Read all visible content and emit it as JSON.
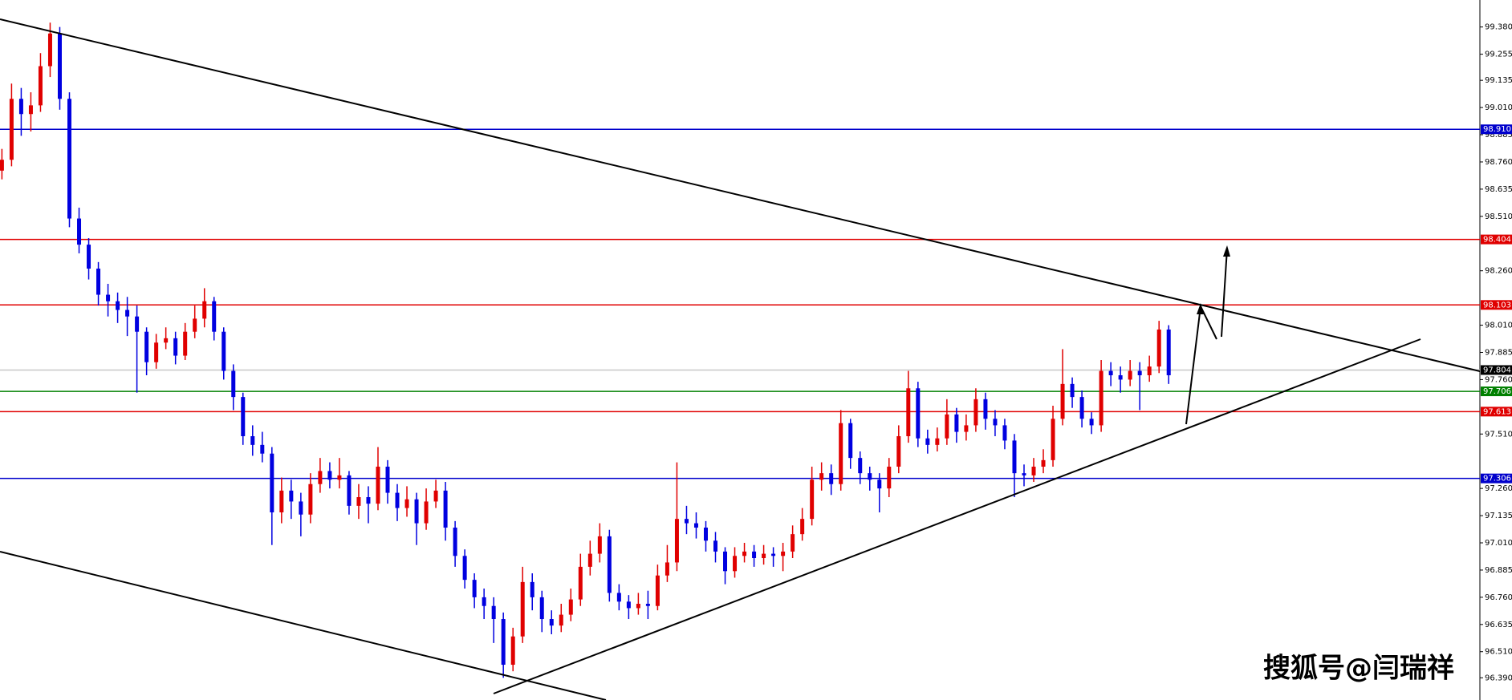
{
  "chart_data": {
    "type": "candlestick",
    "up_color": "#e00000",
    "down_color": "#0000e0",
    "open": [
      98.72,
      98.77,
      99.05,
      98.98,
      99.02,
      99.2,
      99.35,
      99.05,
      98.5,
      98.38,
      98.27,
      98.15,
      98.12,
      98.08,
      98.05,
      97.98,
      97.84,
      97.93,
      97.95,
      97.87,
      97.98,
      98.04,
      98.12,
      97.98,
      97.8,
      97.68,
      97.5,
      97.46,
      97.42,
      97.15,
      97.25,
      97.2,
      97.14,
      97.28,
      97.34,
      97.3,
      97.32,
      97.18,
      97.22,
      97.19,
      97.36,
      97.24,
      97.17,
      97.21,
      97.1,
      97.2,
      97.25,
      97.08,
      96.95,
      96.84,
      96.76,
      96.72,
      96.66,
      96.45,
      96.58,
      96.83,
      96.76,
      96.66,
      96.63,
      96.68,
      96.75,
      96.9,
      96.96,
      97.04,
      96.78,
      96.74,
      96.71,
      96.73,
      96.72,
      96.86,
      96.92,
      97.12,
      97.1,
      97.08,
      97.02,
      96.97,
      96.88,
      96.95,
      96.97,
      96.94,
      96.96,
      96.95,
      96.97,
      97.05,
      97.12,
      97.3,
      97.33,
      97.28,
      97.56,
      97.4,
      97.33,
      97.3,
      97.26,
      97.36,
      97.5,
      97.72,
      97.49,
      97.46,
      97.49,
      97.6,
      97.52,
      97.55,
      97.67,
      97.58,
      97.55,
      97.48,
      97.33,
      97.32,
      97.36,
      97.39,
      97.58,
      97.74,
      97.68,
      97.58,
      97.55,
      97.8,
      97.78,
      97.76,
      97.8,
      97.78,
      97.82,
      97.99
    ],
    "high": [
      98.82,
      99.12,
      99.1,
      99.08,
      99.26,
      99.4,
      99.38,
      99.08,
      98.55,
      98.41,
      98.3,
      98.2,
      98.16,
      98.14,
      98.1,
      98.0,
      97.97,
      98.0,
      97.98,
      98.02,
      98.1,
      98.18,
      98.14,
      98.0,
      97.83,
      97.7,
      97.55,
      97.52,
      97.45,
      97.31,
      97.3,
      97.24,
      97.33,
      97.4,
      97.38,
      97.4,
      97.34,
      97.28,
      97.27,
      97.45,
      97.39,
      97.28,
      97.27,
      97.24,
      97.26,
      97.3,
      97.29,
      97.11,
      96.98,
      96.87,
      96.8,
      96.76,
      96.69,
      96.62,
      96.9,
      96.87,
      96.79,
      96.7,
      96.73,
      96.8,
      96.96,
      97.02,
      97.1,
      97.07,
      96.82,
      96.77,
      96.78,
      96.79,
      96.91,
      97.0,
      97.38,
      97.18,
      97.15,
      97.11,
      97.06,
      96.99,
      96.99,
      97.01,
      97.0,
      97.0,
      96.99,
      97.01,
      97.09,
      97.17,
      97.36,
      97.38,
      97.37,
      97.62,
      97.58,
      97.43,
      97.36,
      97.33,
      97.4,
      97.55,
      97.8,
      97.75,
      97.53,
      97.54,
      97.67,
      97.63,
      97.6,
      97.72,
      97.7,
      97.62,
      97.58,
      97.51,
      97.37,
      97.4,
      97.44,
      97.64,
      97.9,
      97.77,
      97.71,
      97.61,
      97.85,
      97.84,
      97.82,
      97.85,
      97.84,
      97.87,
      98.03,
      98.01
    ],
    "low": [
      98.68,
      98.74,
      98.88,
      98.9,
      98.99,
      99.15,
      99.0,
      98.46,
      98.34,
      98.22,
      98.1,
      98.05,
      98.02,
      97.96,
      97.7,
      97.78,
      97.81,
      97.9,
      97.83,
      97.85,
      97.95,
      98.0,
      97.94,
      97.76,
      97.62,
      97.46,
      97.41,
      97.38,
      97.0,
      97.1,
      97.12,
      97.04,
      97.1,
      97.24,
      97.26,
      97.26,
      97.14,
      97.12,
      97.1,
      97.16,
      97.19,
      97.11,
      97.13,
      97.0,
      97.07,
      97.17,
      97.02,
      96.9,
      96.8,
      96.71,
      96.66,
      96.55,
      96.39,
      96.42,
      96.55,
      96.7,
      96.6,
      96.59,
      96.6,
      96.65,
      96.72,
      96.86,
      96.92,
      96.74,
      96.7,
      96.66,
      96.68,
      96.66,
      96.7,
      96.83,
      96.88,
      97.05,
      97.03,
      96.97,
      96.92,
      96.82,
      96.85,
      96.92,
      96.9,
      96.91,
      96.9,
      96.88,
      96.94,
      97.02,
      97.09,
      97.25,
      97.23,
      97.25,
      97.35,
      97.28,
      97.25,
      97.15,
      97.22,
      97.33,
      97.47,
      97.45,
      97.42,
      97.43,
      97.46,
      97.47,
      97.48,
      97.52,
      97.53,
      97.5,
      97.44,
      97.22,
      97.27,
      97.29,
      97.33,
      97.36,
      97.55,
      97.63,
      97.54,
      97.51,
      97.52,
      97.73,
      97.7,
      97.73,
      97.62,
      97.75,
      97.79,
      97.74
    ],
    "close": [
      98.77,
      99.05,
      98.98,
      99.02,
      99.2,
      99.35,
      99.05,
      98.5,
      98.38,
      98.27,
      98.15,
      98.12,
      98.08,
      98.05,
      97.98,
      97.84,
      97.93,
      97.95,
      97.87,
      97.98,
      98.04,
      98.12,
      97.98,
      97.8,
      97.68,
      97.5,
      97.46,
      97.42,
      97.15,
      97.25,
      97.2,
      97.14,
      97.28,
      97.34,
      97.3,
      97.32,
      97.18,
      97.22,
      97.19,
      97.36,
      97.24,
      97.17,
      97.21,
      97.1,
      97.2,
      97.25,
      97.08,
      96.95,
      96.84,
      96.76,
      96.72,
      96.66,
      96.45,
      96.58,
      96.83,
      96.76,
      96.66,
      96.63,
      96.68,
      96.75,
      96.9,
      96.96,
      97.04,
      96.78,
      96.74,
      96.71,
      96.73,
      96.72,
      96.86,
      96.92,
      97.12,
      97.1,
      97.08,
      97.02,
      96.97,
      96.88,
      96.95,
      96.97,
      96.94,
      96.96,
      96.95,
      96.97,
      97.05,
      97.12,
      97.3,
      97.33,
      97.28,
      97.56,
      97.4,
      97.33,
      97.3,
      97.26,
      97.36,
      97.5,
      97.72,
      97.49,
      97.46,
      97.49,
      97.6,
      97.52,
      97.55,
      97.67,
      97.58,
      97.55,
      97.48,
      97.33,
      97.32,
      97.36,
      97.39,
      97.58,
      97.74,
      97.68,
      97.58,
      97.55,
      97.8,
      97.78,
      97.76,
      97.8,
      97.78,
      97.82,
      97.99,
      97.78
    ],
    "ylim": [
      96.288,
      99.504
    ],
    "yticks": [
      {
        "value": 99.38,
        "label": "99.380"
      },
      99.255,
      99.135,
      {
        "value": 99.01,
        "label": "99.010"
      },
      98.885,
      {
        "value": 98.76,
        "label": "98.760"
      },
      98.635,
      {
        "value": 98.51,
        "label": "98.510"
      },
      {
        "value": 98.26,
        "label": "98.260"
      },
      {
        "value": 98.01,
        "label": "98.010"
      },
      97.885,
      {
        "value": 97.76,
        "label": "97.760"
      },
      {
        "value": 97.51,
        "label": "97.510"
      },
      {
        "value": 97.26,
        "label": "97.260"
      },
      97.135,
      {
        "value": 97.01,
        "label": "97.010"
      },
      96.885,
      {
        "value": 96.76,
        "label": "96.760"
      },
      96.635,
      {
        "value": 96.51,
        "label": "96.510"
      },
      {
        "value": 96.39,
        "label": "96.390"
      }
    ],
    "levels": [
      {
        "value": 98.91,
        "label": "98.910",
        "color": "#0000cc"
      },
      {
        "value": 98.404,
        "label": "98.404",
        "color": "#e00000"
      },
      {
        "value": 98.103,
        "label": "98.103",
        "color": "#e00000"
      },
      {
        "value": 97.804,
        "label": "97.804",
        "color": "#c8c8c8"
      },
      {
        "value": 97.706,
        "label": "97.706",
        "color": "#008000"
      },
      {
        "value": 97.613,
        "label": "97.613",
        "color": "#e00000"
      },
      {
        "value": 97.306,
        "label": "97.306",
        "color": "#0000cc"
      }
    ],
    "watermark": "搜狐号@闫瑞祥"
  }
}
